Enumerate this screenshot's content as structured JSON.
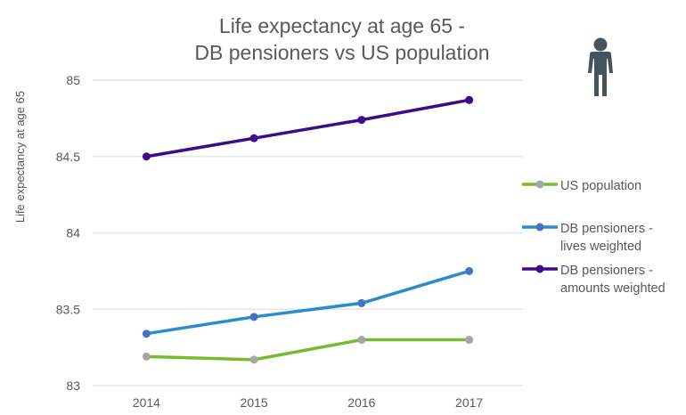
{
  "chart_data": {
    "type": "line",
    "title_lines": [
      "Life expectancy at age 65 -",
      "DB pensioners vs US population"
    ],
    "xlabel": "",
    "ylabel": "Life expectancy at age 65",
    "categories": [
      "2014",
      "2015",
      "2016",
      "2017"
    ],
    "ylim": [
      83,
      85
    ],
    "yticks": [
      83,
      83.5,
      84,
      84.5,
      85
    ],
    "ytick_labels": [
      "83",
      "83.5",
      "84",
      "84.5",
      "85"
    ],
    "grid": true,
    "legend_position": "right",
    "series": [
      {
        "name": "US population",
        "legend_lines": [
          "US population"
        ],
        "color": "#77bc2f",
        "marker_color": "#a5a5a5",
        "values": [
          83.19,
          83.17,
          83.3,
          83.3
        ]
      },
      {
        "name": "DB pensioners - lives weighted",
        "legend_lines": [
          "DB pensioners -",
          "lives weighted"
        ],
        "color": "#2b8ccd",
        "marker_color": "#4472c4",
        "values": [
          83.34,
          83.45,
          83.54,
          83.75
        ]
      },
      {
        "name": "DB pensioners - amounts weighted",
        "legend_lines": [
          "DB pensioners -",
          "amounts weighted"
        ],
        "color": "#3f0a8c",
        "marker_color": "#3f0a8c",
        "values": [
          84.5,
          84.62,
          84.74,
          84.87
        ]
      }
    ]
  },
  "decoration": {
    "icon": "person-icon",
    "icon_color": "#44545f"
  }
}
